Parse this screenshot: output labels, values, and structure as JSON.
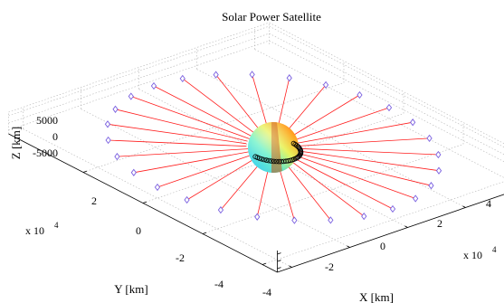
{
  "chart_data": {
    "type": "scatter",
    "title": "Solar Power Satellite",
    "xlabel": "X [km]",
    "ylabel": "Y [km]",
    "zlabel": "Z [km]",
    "x_exponent": "x 10",
    "y_exponent": "x 10",
    "exponent_power": "4",
    "xlim": [
      -45000,
      45000
    ],
    "ylim": [
      -45000,
      45000
    ],
    "zlim": [
      -7500,
      7500
    ],
    "x_ticks": [
      "-4",
      "-2",
      "0",
      "2",
      "4"
    ],
    "y_ticks": [
      "-4",
      "-2",
      "0",
      "2"
    ],
    "z_ticks": [
      "-5000",
      "0",
      "5000"
    ],
    "grid": true,
    "series": [
      {
        "kind": "mirrors on tethers",
        "radius_km": 40000,
        "count": 28,
        "z_km": 0,
        "marker": "diamond",
        "marker_color": "#7a60e0",
        "tether_color": "#ff1e1e"
      },
      {
        "kind": "central body (sphere)",
        "radius_km": 6500,
        "center": [
          0,
          0,
          0
        ]
      }
    ]
  }
}
